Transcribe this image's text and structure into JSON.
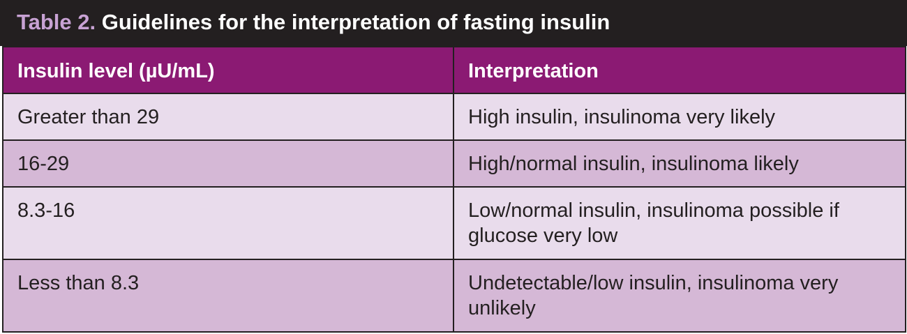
{
  "caption": {
    "label": "Table 2.",
    "title": "Guidelines for the interpretation of fasting insulin"
  },
  "headers": {
    "col1": "Insulin level (µU/mL)",
    "col2": "Interpretation"
  },
  "rows": [
    {
      "level": "Greater than 29",
      "interpretation": "High insulin, insulinoma very likely"
    },
    {
      "level": "16-29",
      "interpretation": "High/normal insulin, insulinoma likely"
    },
    {
      "level": "8.3-16",
      "interpretation": "Low/normal insulin, insulinoma possible if glucose very low"
    },
    {
      "level": "Less than 8.3",
      "interpretation": "Undetectable/low insulin, insulinoma very unlikely"
    }
  ],
  "colors": {
    "caption_bg": "#231f20",
    "caption_label": "#c8a2d4",
    "header_bg": "#8b1a73",
    "row_light": "#e9dcec",
    "row_dark": "#d5b8d6"
  }
}
